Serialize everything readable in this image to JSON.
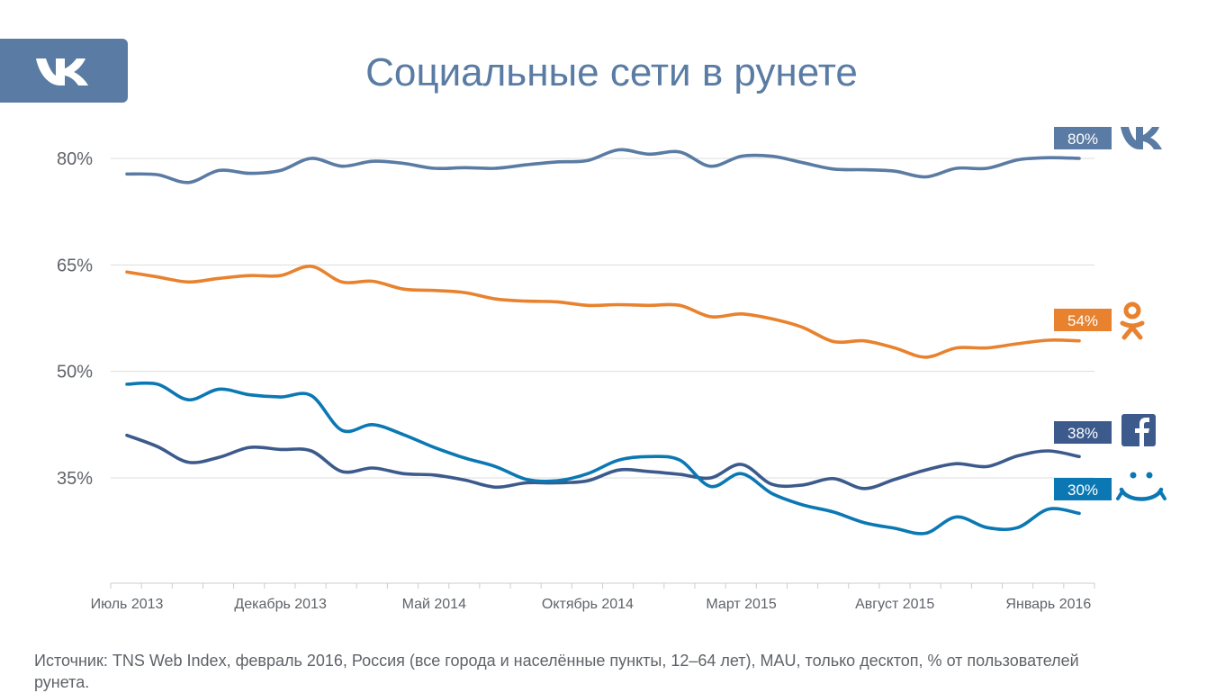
{
  "title": "Социальные сети в рунете",
  "source_note": "Источник: TNS Web Index, февраль 2016, Россия (все города и населённые пункты, 12–64 лет), MAU, только десктоп, % от пользователей рунета.",
  "colors": {
    "vk": "#5a7ba3",
    "ok": "#e8822e",
    "fb": "#3c5a8c",
    "mm": "#0b78b4",
    "grid": "#dddddd",
    "text": "#5f6368"
  },
  "chart_data": {
    "type": "line",
    "title": "Социальные сети в рунете",
    "ylim": [
      20,
      80
    ],
    "y_ticks": [
      {
        "value": 80,
        "label": "80%"
      },
      {
        "value": 65,
        "label": "65%"
      },
      {
        "value": 50,
        "label": "50%"
      },
      {
        "value": 35,
        "label": "35%"
      }
    ],
    "x_count": 32,
    "x_labels": [
      {
        "index": 0,
        "label": "Июль 2013"
      },
      {
        "index": 5,
        "label": "Декабрь 2013"
      },
      {
        "index": 10,
        "label": "Май 2014"
      },
      {
        "index": 15,
        "label": "Октябрь 2014"
      },
      {
        "index": 20,
        "label": "Март 2015"
      },
      {
        "index": 25,
        "label": "Август 2015"
      },
      {
        "index": 30,
        "label": "Январь 2016"
      }
    ],
    "series": [
      {
        "name": "ВКонтакте",
        "key": "vk",
        "end_label": "80%",
        "icon": "vk-icon",
        "values": [
          77.8,
          77.7,
          76.6,
          78.3,
          77.9,
          78.3,
          80,
          78.9,
          79.6,
          79.3,
          78.6,
          78.7,
          78.6,
          79.1,
          79.5,
          79.7,
          81.2,
          80.6,
          80.9,
          78.9,
          80.3,
          80.3,
          79.4,
          78.5,
          78.4,
          78.2,
          77.4,
          78.6,
          78.6,
          79.8,
          80.1,
          80
        ]
      },
      {
        "name": "Одноклассники",
        "key": "ok",
        "end_label": "54%",
        "icon": "ok-icon",
        "values": [
          64,
          63.3,
          62.6,
          63.1,
          63.5,
          63.5,
          64.8,
          62.6,
          62.7,
          61.6,
          61.4,
          61.1,
          60.2,
          59.9,
          59.8,
          59.3,
          59.4,
          59.3,
          59.3,
          57.7,
          58.1,
          57.4,
          56.2,
          54.2,
          54.3,
          53.3,
          52,
          53.3,
          53.3,
          53.9,
          54.4,
          54.3
        ]
      },
      {
        "name": "Facebook",
        "key": "fb",
        "end_label": "38%",
        "icon": "facebook-icon",
        "values": [
          41,
          39.4,
          37.2,
          37.9,
          39.3,
          39,
          38.8,
          35.9,
          36.4,
          35.6,
          35.4,
          34.7,
          33.7,
          34.3,
          34.3,
          34.6,
          36.1,
          35.9,
          35.5,
          35,
          36.9,
          34.1,
          34,
          34.9,
          33.5,
          34.8,
          36.1,
          37,
          36.6,
          38.1,
          38.8,
          38
        ]
      },
      {
        "name": "Мой Мир",
        "key": "mm",
        "end_label": "30%",
        "icon": "mailru-icon",
        "values": [
          48.2,
          48.2,
          46,
          47.5,
          46.7,
          46.4,
          46.6,
          41.7,
          42.5,
          41.1,
          39.3,
          37.8,
          36.6,
          34.8,
          34.6,
          35.6,
          37.5,
          38,
          37.5,
          33.8,
          35.6,
          32.8,
          31.2,
          30.2,
          28.7,
          27.9,
          27.2,
          29.5,
          28,
          28,
          30.6,
          30
        ]
      }
    ]
  }
}
